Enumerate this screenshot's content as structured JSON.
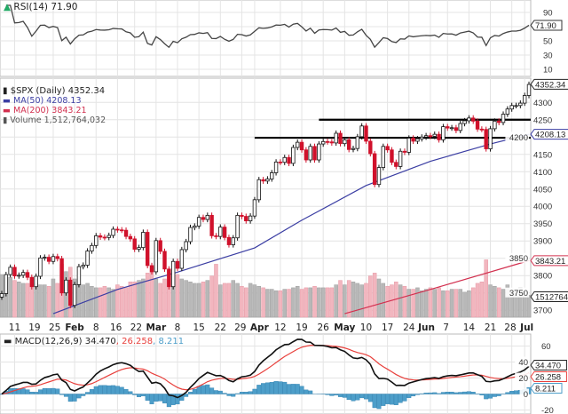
{
  "chart_data": [
    {
      "type": "line",
      "panel": "rsi",
      "title": "RSI(14) 71.90",
      "indicator": "RSI(14)",
      "last_value": "71.90",
      "y_ticks": [
        90,
        70,
        50,
        30,
        10
      ],
      "reference_lines": [
        70,
        50,
        30
      ],
      "ylim": [
        0,
        100
      ],
      "color": "#444444"
    },
    {
      "type": "candlestick",
      "panel": "price",
      "symbol": "$SPX (Daily)",
      "last_value": "4352.34",
      "ylim": [
        3680,
        4370
      ],
      "y_ticks": [
        4300,
        4250,
        4200,
        4150,
        4100,
        4050,
        4000,
        3950,
        3900,
        3850,
        3800,
        3750,
        3700
      ],
      "grid": true,
      "x": [
        "Jan 6",
        "Jan 7",
        "Jan 8",
        "Jan 11",
        "Jan 12",
        "Jan 13",
        "Jan 14",
        "Jan 15",
        "Jan 19",
        "Jan 20",
        "Jan 21",
        "Jan 22",
        "Jan 25",
        "Jan 26",
        "Jan 27",
        "Jan 28",
        "Jan 29",
        "Feb 1",
        "Feb 2",
        "Feb 3",
        "Feb 4",
        "Feb 5",
        "Feb 8",
        "Feb 9",
        "Feb 10",
        "Feb 11",
        "Feb 12",
        "Feb 16",
        "Feb 17",
        "Feb 18",
        "Feb 19",
        "Feb 22",
        "Feb 23",
        "Feb 24",
        "Feb 25",
        "Feb 26",
        "Mar 1",
        "Mar 2",
        "Mar 3",
        "Mar 4",
        "Mar 5",
        "Mar 8",
        "Mar 9",
        "Mar 10",
        "Mar 11",
        "Mar 12",
        "Mar 15",
        "Mar 16",
        "Mar 17",
        "Mar 18",
        "Mar 19",
        "Mar 22",
        "Mar 23",
        "Mar 24",
        "Mar 25",
        "Mar 26",
        "Mar 29",
        "Mar 30",
        "Mar 31",
        "Apr 1",
        "Apr 5",
        "Apr 6",
        "Apr 7",
        "Apr 8",
        "Apr 9",
        "Apr 12",
        "Apr 13",
        "Apr 14",
        "Apr 15",
        "Apr 16",
        "Apr 19",
        "Apr 20",
        "Apr 21",
        "Apr 22",
        "Apr 23",
        "Apr 26",
        "Apr 27",
        "Apr 28",
        "Apr 29",
        "Apr 30",
        "May 3",
        "May 4",
        "May 5",
        "May 6",
        "May 7",
        "May 10",
        "May 11",
        "May 12",
        "May 13",
        "May 14",
        "May 17",
        "May 18",
        "May 19",
        "May 20",
        "May 21",
        "May 24",
        "May 25",
        "May 26",
        "May 27",
        "May 28",
        "Jun 1",
        "Jun 2",
        "Jun 3",
        "Jun 4",
        "Jun 7",
        "Jun 8",
        "Jun 9",
        "Jun 10",
        "Jun 11",
        "Jun 14",
        "Jun 15",
        "Jun 16",
        "Jun 17",
        "Jun 18",
        "Jun 21",
        "Jun 22",
        "Jun 23",
        "Jun 24",
        "Jun 25",
        "Jun 28",
        "Jun 29",
        "Jun 30",
        "Jul 1",
        "Jul 2"
      ],
      "close": [
        3748,
        3803,
        3824,
        3799,
        3801,
        3809,
        3795,
        3768,
        3798,
        3851,
        3853,
        3841,
        3855,
        3849,
        3750,
        3787,
        3714,
        3774,
        3826,
        3830,
        3871,
        3887,
        3915,
        3911,
        3910,
        3916,
        3934,
        3932,
        3931,
        3913,
        3906,
        3876,
        3881,
        3925,
        3829,
        3811,
        3901,
        3870,
        3819,
        3768,
        3841,
        3821,
        3875,
        3898,
        3939,
        3943,
        3968,
        3962,
        3974,
        3915,
        3913,
        3940,
        3910,
        3889,
        3909,
        3974,
        3971,
        3958,
        3972,
        4019,
        4077,
        4073,
        4079,
        4097,
        4128,
        4127,
        4141,
        4124,
        4170,
        4185,
        4163,
        4134,
        4173,
        4134,
        4180,
        4187,
        4186,
        4183,
        4211,
        4181,
        4192,
        4164,
        4167,
        4201,
        4232,
        4188,
        4152,
        4063,
        4112,
        4173,
        4163,
        4127,
        4115,
        4159,
        4156,
        4197,
        4188,
        4195,
        4200,
        4204,
        4202,
        4208,
        4192,
        4230,
        4226,
        4227,
        4219,
        4239,
        4247,
        4255,
        4246,
        4223,
        4222,
        4166,
        4224,
        4246,
        4242,
        4266,
        4281,
        4291,
        4291,
        4298,
        4320,
        4352
      ],
      "volume_billions": [
        2.9,
        2.8,
        2.7,
        2.5,
        2.4,
        2.3,
        2.3,
        2.6,
        2.3,
        2.2,
        2.2,
        2.1,
        2.6,
        2.3,
        3.6,
        3.1,
        3.4,
        2.6,
        2.3,
        2.2,
        2.3,
        2.1,
        2.0,
        2.0,
        2.1,
        2.0,
        1.9,
        2.2,
        2.1,
        2.0,
        2.4,
        2.4,
        2.5,
        2.6,
        3.0,
        3.4,
        2.6,
        2.3,
        2.6,
        3.2,
        3.0,
        2.9,
        2.6,
        2.5,
        2.4,
        2.3,
        2.3,
        2.4,
        2.5,
        2.8,
        3.6,
        2.2,
        2.3,
        2.3,
        2.5,
        2.3,
        2.1,
        2.0,
        2.3,
        2.2,
        2.1,
        2.0,
        1.9,
        1.9,
        1.8,
        1.8,
        1.9,
        1.9,
        2.0,
        2.1,
        1.9,
        2.0,
        2.0,
        2.1,
        2.0,
        2.0,
        2.0,
        2.0,
        2.2,
        2.5,
        2.2,
        2.5,
        2.4,
        2.3,
        2.2,
        2.3,
        2.8,
        3.0,
        2.6,
        2.3,
        2.1,
        2.2,
        2.4,
        2.2,
        2.1,
        1.9,
        1.9,
        2.0,
        1.8,
        1.9,
        2.0,
        1.9,
        2.0,
        1.8,
        1.8,
        1.9,
        1.9,
        1.9,
        1.7,
        1.8,
        2.0,
        2.3,
        2.4,
        3.9,
        2.2,
        2.1,
        2.0,
        1.9,
        2.2,
        1.9,
        1.9,
        2.0,
        1.8,
        1.5
      ],
      "ma50": {
        "label": "MA(50) 4208.13",
        "last_value": "4208.13",
        "color": "#3b3ea3",
        "points": [
          [
            "Jan 25",
            3690
          ],
          [
            "Feb 16",
            3760
          ],
          [
            "Mar 8",
            3810
          ],
          [
            "Apr 1",
            3880
          ],
          [
            "Apr 19",
            3960
          ],
          [
            "May 10",
            4060
          ],
          [
            "Jun 1",
            4130
          ],
          [
            "Jun 21",
            4180
          ],
          [
            "Jul 2",
            4208.13
          ]
        ]
      },
      "ma200": {
        "label": "MA(200) 3843.21",
        "last_value": "3843.21",
        "color": "#d2304f",
        "points": [
          [
            "May 3",
            3690
          ],
          [
            "Jun 1",
            3760
          ],
          [
            "Jul 2",
            3843.21
          ]
        ]
      },
      "volume": {
        "label": "Volume 1,512,764,032",
        "axis_label": "1512764"
      },
      "support_resistance": [
        {
          "value": 4250,
          "from": "Apr 23",
          "to": "Jul 2"
        },
        {
          "value": 4198,
          "from": "Apr 1",
          "to": "Jul 2"
        }
      ],
      "up_color": "#ffffff",
      "down_color": "#d0112b"
    },
    {
      "type": "line",
      "panel": "macd",
      "indicator": "MACD(12,26,9)",
      "macd_value": "34.470",
      "signal_value": "26.258",
      "histogram_value": "8.211",
      "y_ticks": [
        60,
        40,
        20,
        0,
        -20
      ],
      "ylim": [
        -25,
        75
      ],
      "colors": {
        "macd": "#111111",
        "signal": "#e8403c",
        "histogram": "#4d9ec9"
      }
    }
  ],
  "x_axis": {
    "ticks": [
      {
        "label": "11",
        "date": "Jan 11",
        "bold": false
      },
      {
        "label": "19",
        "date": "Jan 19",
        "bold": false
      },
      {
        "label": "25",
        "date": "Jan 25",
        "bold": false
      },
      {
        "label": "Feb",
        "date": "Feb 1",
        "bold": true
      },
      {
        "label": "8",
        "date": "Feb 8",
        "bold": false
      },
      {
        "label": "16",
        "date": "Feb 16",
        "bold": false
      },
      {
        "label": "22",
        "date": "Feb 22",
        "bold": false
      },
      {
        "label": "Mar",
        "date": "Mar 1",
        "bold": true
      },
      {
        "label": "8",
        "date": "Mar 8",
        "bold": false
      },
      {
        "label": "15",
        "date": "Mar 15",
        "bold": false
      },
      {
        "label": "22",
        "date": "Mar 22",
        "bold": false
      },
      {
        "label": "29",
        "date": "Mar 29",
        "bold": false
      },
      {
        "label": "Apr",
        "date": "Apr 1",
        "bold": true
      },
      {
        "label": "12",
        "date": "Apr 12",
        "bold": false
      },
      {
        "label": "19",
        "date": "Apr 19",
        "bold": false
      },
      {
        "label": "26",
        "date": "Apr 26",
        "bold": false
      },
      {
        "label": "May",
        "date": "May 3",
        "bold": true
      },
      {
        "label": "10",
        "date": "May 10",
        "bold": false
      },
      {
        "label": "17",
        "date": "May 17",
        "bold": false
      },
      {
        "label": "24",
        "date": "May 24",
        "bold": false
      },
      {
        "label": "Jun",
        "date": "Jun 1",
        "bold": true
      },
      {
        "label": "7",
        "date": "Jun 7",
        "bold": false
      },
      {
        "label": "14",
        "date": "Jun 14",
        "bold": false
      },
      {
        "label": "21",
        "date": "Jun 21",
        "bold": false
      },
      {
        "label": "28",
        "date": "Jun 28",
        "bold": false
      },
      {
        "label": "Jul",
        "date": "Jul 1",
        "bold": true
      }
    ]
  },
  "legend": {
    "rsi": "RSI(14) 71.90",
    "price": "$SPX (Daily) 4352.34",
    "ma50": "MA(50) 4208.13",
    "ma200": "MA(200) 3843.21",
    "volume": "Volume 1,512,764,032",
    "macd_prefix": "MACD(12,26,9) 34.470",
    "macd_signal": ", 26.258",
    "macd_hist": ", 8.211"
  }
}
